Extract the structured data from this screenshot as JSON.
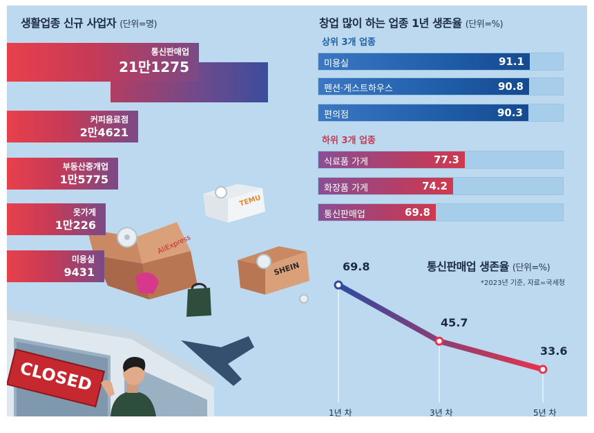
{
  "left_chart": {
    "title": "생활업종 신규 사업자",
    "unit": "(단위=명)"
  },
  "right_chart": {
    "title": "창업 많이 하는 업종 1년 생존율",
    "unit": "(단위=%)",
    "top_label": "상위 3개 업종",
    "bottom_label": "하위 3개 업종"
  },
  "line_chart": {
    "title": "통신판매업 생존율",
    "unit": "(단위=%)",
    "note": "*2023년 기준, 자료=국세청"
  },
  "illustration": {
    "sign_text": "CLOSED",
    "box_labels": [
      "AliExpress",
      "SHEIN",
      "TEMU"
    ]
  },
  "chart_data": [
    {
      "type": "bar",
      "orientation": "horizontal",
      "categories": [
        "통신판매업",
        "커피음료점",
        "부동산중개업",
        "옷가게",
        "미용실"
      ],
      "values": [
        211275,
        24621,
        15775,
        10226,
        9431
      ],
      "value_labels": [
        "21만1275",
        "2만4621",
        "1만5775",
        "1만226",
        "9431"
      ],
      "title": "생활업종 신규 사업자",
      "unit": "단위=명"
    },
    {
      "type": "bar",
      "orientation": "horizontal",
      "title": "창업 많이 하는 업종 1년 생존율",
      "unit": "단위=%",
      "xlim": [
        0,
        100
      ],
      "groups": [
        {
          "name": "상위 3개 업종",
          "categories": [
            "미용실",
            "펜션·게스트하우스",
            "편의점"
          ],
          "values": [
            91.1,
            90.8,
            90.3
          ],
          "color": "#1e5fa8"
        },
        {
          "name": "하위 3개 업종",
          "categories": [
            "식료품 가게",
            "화장품 가게",
            "통신판매업"
          ],
          "values": [
            77.3,
            74.2,
            69.8
          ],
          "color": "#c73a55"
        }
      ]
    },
    {
      "type": "line",
      "title": "통신판매업 생존율",
      "unit": "단위=%",
      "categories": [
        "1년 차",
        "3년 차",
        "5년 차"
      ],
      "values": [
        69.8,
        45.7,
        33.6
      ],
      "value_labels": [
        "69.8",
        "45.7",
        "33.6"
      ],
      "colors": [
        "#2f4aa0",
        "#e8334a"
      ]
    }
  ]
}
